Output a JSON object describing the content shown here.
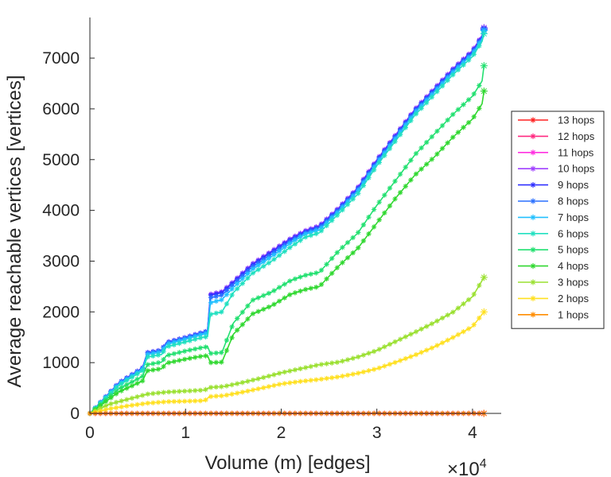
{
  "chart_data": {
    "type": "line",
    "xlabel": "Volume (m) [edges]",
    "ylabel": "Average reachable vertices [vertices]",
    "x_multiplier_base": "×10",
    "x_multiplier_exponent": "4",
    "xlim": [
      0,
      4.3
    ],
    "ylim": [
      0,
      7800
    ],
    "x_ticks": [
      0,
      1,
      2,
      3,
      4
    ],
    "x_tick_labels": [
      "0",
      "1",
      "2",
      "3",
      "4"
    ],
    "y_ticks": [
      0,
      1000,
      2000,
      3000,
      4000,
      5000,
      6000,
      7000
    ],
    "y_tick_labels": [
      "0",
      "1000",
      "2000",
      "3000",
      "4000",
      "5000",
      "6000",
      "7000"
    ],
    "legend_position": "right",
    "series": [
      {
        "name": "13 hops",
        "color": "#ff2020",
        "x": [
          0,
          4.12
        ],
        "y": [
          0,
          0
        ]
      },
      {
        "name": "12 hops",
        "color": "#ff2a80",
        "x": [
          0,
          4.12
        ],
        "y": [
          0,
          0
        ]
      },
      {
        "name": "11 hops",
        "color": "#ff30e0",
        "x": [
          0,
          4.12
        ],
        "y": [
          0,
          0
        ]
      },
      {
        "name": "10 hops",
        "color": "#a040ff",
        "x": [
          0,
          0.3,
          0.55,
          0.6,
          0.75,
          0.8,
          1.0,
          1.18,
          1.22,
          1.23,
          1.26,
          1.38,
          1.5,
          1.7,
          1.9,
          2.1,
          2.25,
          2.4,
          2.6,
          2.8,
          3.0,
          3.2,
          3.4,
          3.6,
          3.8,
          4.0,
          4.1,
          4.12
        ],
        "y": [
          0,
          600,
          900,
          1200,
          1250,
          1400,
          1500,
          1600,
          1620,
          1650,
          2350,
          2400,
          2600,
          2950,
          3200,
          3450,
          3600,
          3700,
          4050,
          4450,
          5000,
          5500,
          6000,
          6400,
          6800,
          7150,
          7450,
          7600
        ]
      },
      {
        "name": "9 hops",
        "color": "#3030ff",
        "x": [
          0,
          0.3,
          0.55,
          0.6,
          0.75,
          0.8,
          1.0,
          1.18,
          1.22,
          1.23,
          1.26,
          1.38,
          1.5,
          1.7,
          1.9,
          2.1,
          2.25,
          2.4,
          2.6,
          2.8,
          3.0,
          3.2,
          3.4,
          3.6,
          3.8,
          4.0,
          4.1,
          4.12
        ],
        "y": [
          0,
          595,
          895,
          1195,
          1245,
          1395,
          1495,
          1595,
          1615,
          1645,
          2330,
          2380,
          2580,
          2930,
          3180,
          3430,
          3580,
          3680,
          4030,
          4430,
          4980,
          5480,
          5980,
          6380,
          6780,
          7130,
          7430,
          7580
        ]
      },
      {
        "name": "8 hops",
        "color": "#2a70ff",
        "x": [
          0,
          0.3,
          0.55,
          0.6,
          0.75,
          0.8,
          1.0,
          1.18,
          1.22,
          1.23,
          1.26,
          1.38,
          1.5,
          1.7,
          1.9,
          2.1,
          2.25,
          2.4,
          2.6,
          2.8,
          3.0,
          3.2,
          3.4,
          3.6,
          3.8,
          4.0,
          4.1,
          4.12
        ],
        "y": [
          0,
          590,
          890,
          1190,
          1240,
          1390,
          1490,
          1590,
          1610,
          1640,
          2280,
          2330,
          2540,
          2890,
          3140,
          3400,
          3560,
          3660,
          4010,
          4410,
          4960,
          5460,
          5960,
          6360,
          6760,
          7110,
          7410,
          7560
        ]
      },
      {
        "name": "7 hops",
        "color": "#22c0ff",
        "x": [
          0,
          0.3,
          0.55,
          0.6,
          0.75,
          0.8,
          1.0,
          1.18,
          1.22,
          1.23,
          1.26,
          1.38,
          1.5,
          1.7,
          1.9,
          2.1,
          2.25,
          2.4,
          2.6,
          2.8,
          3.0,
          3.2,
          3.4,
          3.6,
          3.8,
          4.0,
          4.1,
          4.12
        ],
        "y": [
          0,
          575,
          870,
          1160,
          1210,
          1360,
          1460,
          1560,
          1575,
          1600,
          2180,
          2240,
          2480,
          2840,
          3090,
          3360,
          3530,
          3620,
          3980,
          4380,
          4930,
          5430,
          5930,
          6330,
          6730,
          7080,
          7380,
          7540
        ]
      },
      {
        "name": "6 hops",
        "color": "#20e0c0",
        "x": [
          0,
          0.3,
          0.55,
          0.6,
          0.75,
          0.8,
          1.0,
          1.18,
          1.22,
          1.23,
          1.26,
          1.38,
          1.5,
          1.7,
          1.9,
          2.1,
          2.25,
          2.4,
          2.6,
          2.8,
          3.0,
          3.2,
          3.4,
          3.6,
          3.8,
          4.0,
          4.1,
          4.12
        ],
        "y": [
          0,
          550,
          840,
          1110,
          1160,
          1310,
          1410,
          1500,
          1510,
          1520,
          1950,
          2000,
          2380,
          2760,
          3000,
          3280,
          3470,
          3560,
          3930,
          4320,
          4880,
          5380,
          5880,
          6280,
          6680,
          7030,
          7330,
          7480
        ]
      },
      {
        "name": "5 hops",
        "color": "#22e070",
        "x": [
          0,
          0.3,
          0.55,
          0.6,
          0.75,
          0.8,
          1.0,
          1.18,
          1.22,
          1.23,
          1.26,
          1.38,
          1.5,
          1.7,
          1.9,
          2.1,
          2.25,
          2.4,
          2.6,
          2.8,
          3.0,
          3.2,
          3.4,
          3.6,
          3.8,
          4.0,
          4.1,
          4.12
        ],
        "y": [
          0,
          480,
          730,
          960,
          1010,
          1140,
          1230,
          1300,
          1310,
          1320,
          1180,
          1200,
          1780,
          2230,
          2390,
          2620,
          2720,
          2780,
          3200,
          3550,
          4100,
          4600,
          5100,
          5500,
          5900,
          6250,
          6550,
          6850
        ]
      },
      {
        "name": "4 hops",
        "color": "#30d830",
        "x": [
          0,
          0.3,
          0.55,
          0.6,
          0.75,
          0.8,
          1.0,
          1.18,
          1.22,
          1.23,
          1.26,
          1.38,
          1.5,
          1.7,
          1.9,
          2.1,
          2.25,
          2.4,
          2.6,
          2.8,
          3.0,
          3.2,
          3.4,
          3.6,
          3.8,
          4.0,
          4.1,
          4.12
        ],
        "y": [
          0,
          420,
          640,
          840,
          880,
          990,
          1070,
          1130,
          1135,
          1140,
          1000,
          1010,
          1560,
          1960,
          2120,
          2350,
          2440,
          2500,
          2900,
          3250,
          3750,
          4250,
          4700,
          5050,
          5450,
          5800,
          6100,
          6350
        ]
      },
      {
        "name": "3 hops",
        "color": "#9ae030",
        "x": [
          0,
          0.2,
          0.4,
          0.6,
          0.8,
          1.0,
          1.2,
          1.25,
          1.4,
          1.6,
          1.8,
          2.0,
          2.2,
          2.4,
          2.6,
          2.8,
          3.0,
          3.2,
          3.4,
          3.6,
          3.8,
          4.0,
          4.12
        ],
        "y": [
          0,
          180,
          280,
          380,
          420,
          440,
          460,
          510,
          530,
          610,
          700,
          800,
          880,
          960,
          1010,
          1110,
          1240,
          1420,
          1600,
          1790,
          2000,
          2300,
          2680
        ]
      },
      {
        "name": "2 hops",
        "color": "#ffe020",
        "x": [
          0,
          0.2,
          0.4,
          0.6,
          0.8,
          1.0,
          1.2,
          1.25,
          1.4,
          1.6,
          1.8,
          2.0,
          2.2,
          2.4,
          2.6,
          2.8,
          3.0,
          3.2,
          3.4,
          3.6,
          3.8,
          4.0,
          4.12
        ],
        "y": [
          0,
          90,
          150,
          200,
          230,
          240,
          250,
          330,
          350,
          420,
          500,
          580,
          630,
          670,
          720,
          790,
          880,
          1010,
          1150,
          1310,
          1500,
          1710,
          2000
        ]
      },
      {
        "name": "1 hops",
        "color": "#ff8c00",
        "x": [
          0,
          4.12
        ],
        "y": [
          0,
          0
        ]
      }
    ]
  }
}
